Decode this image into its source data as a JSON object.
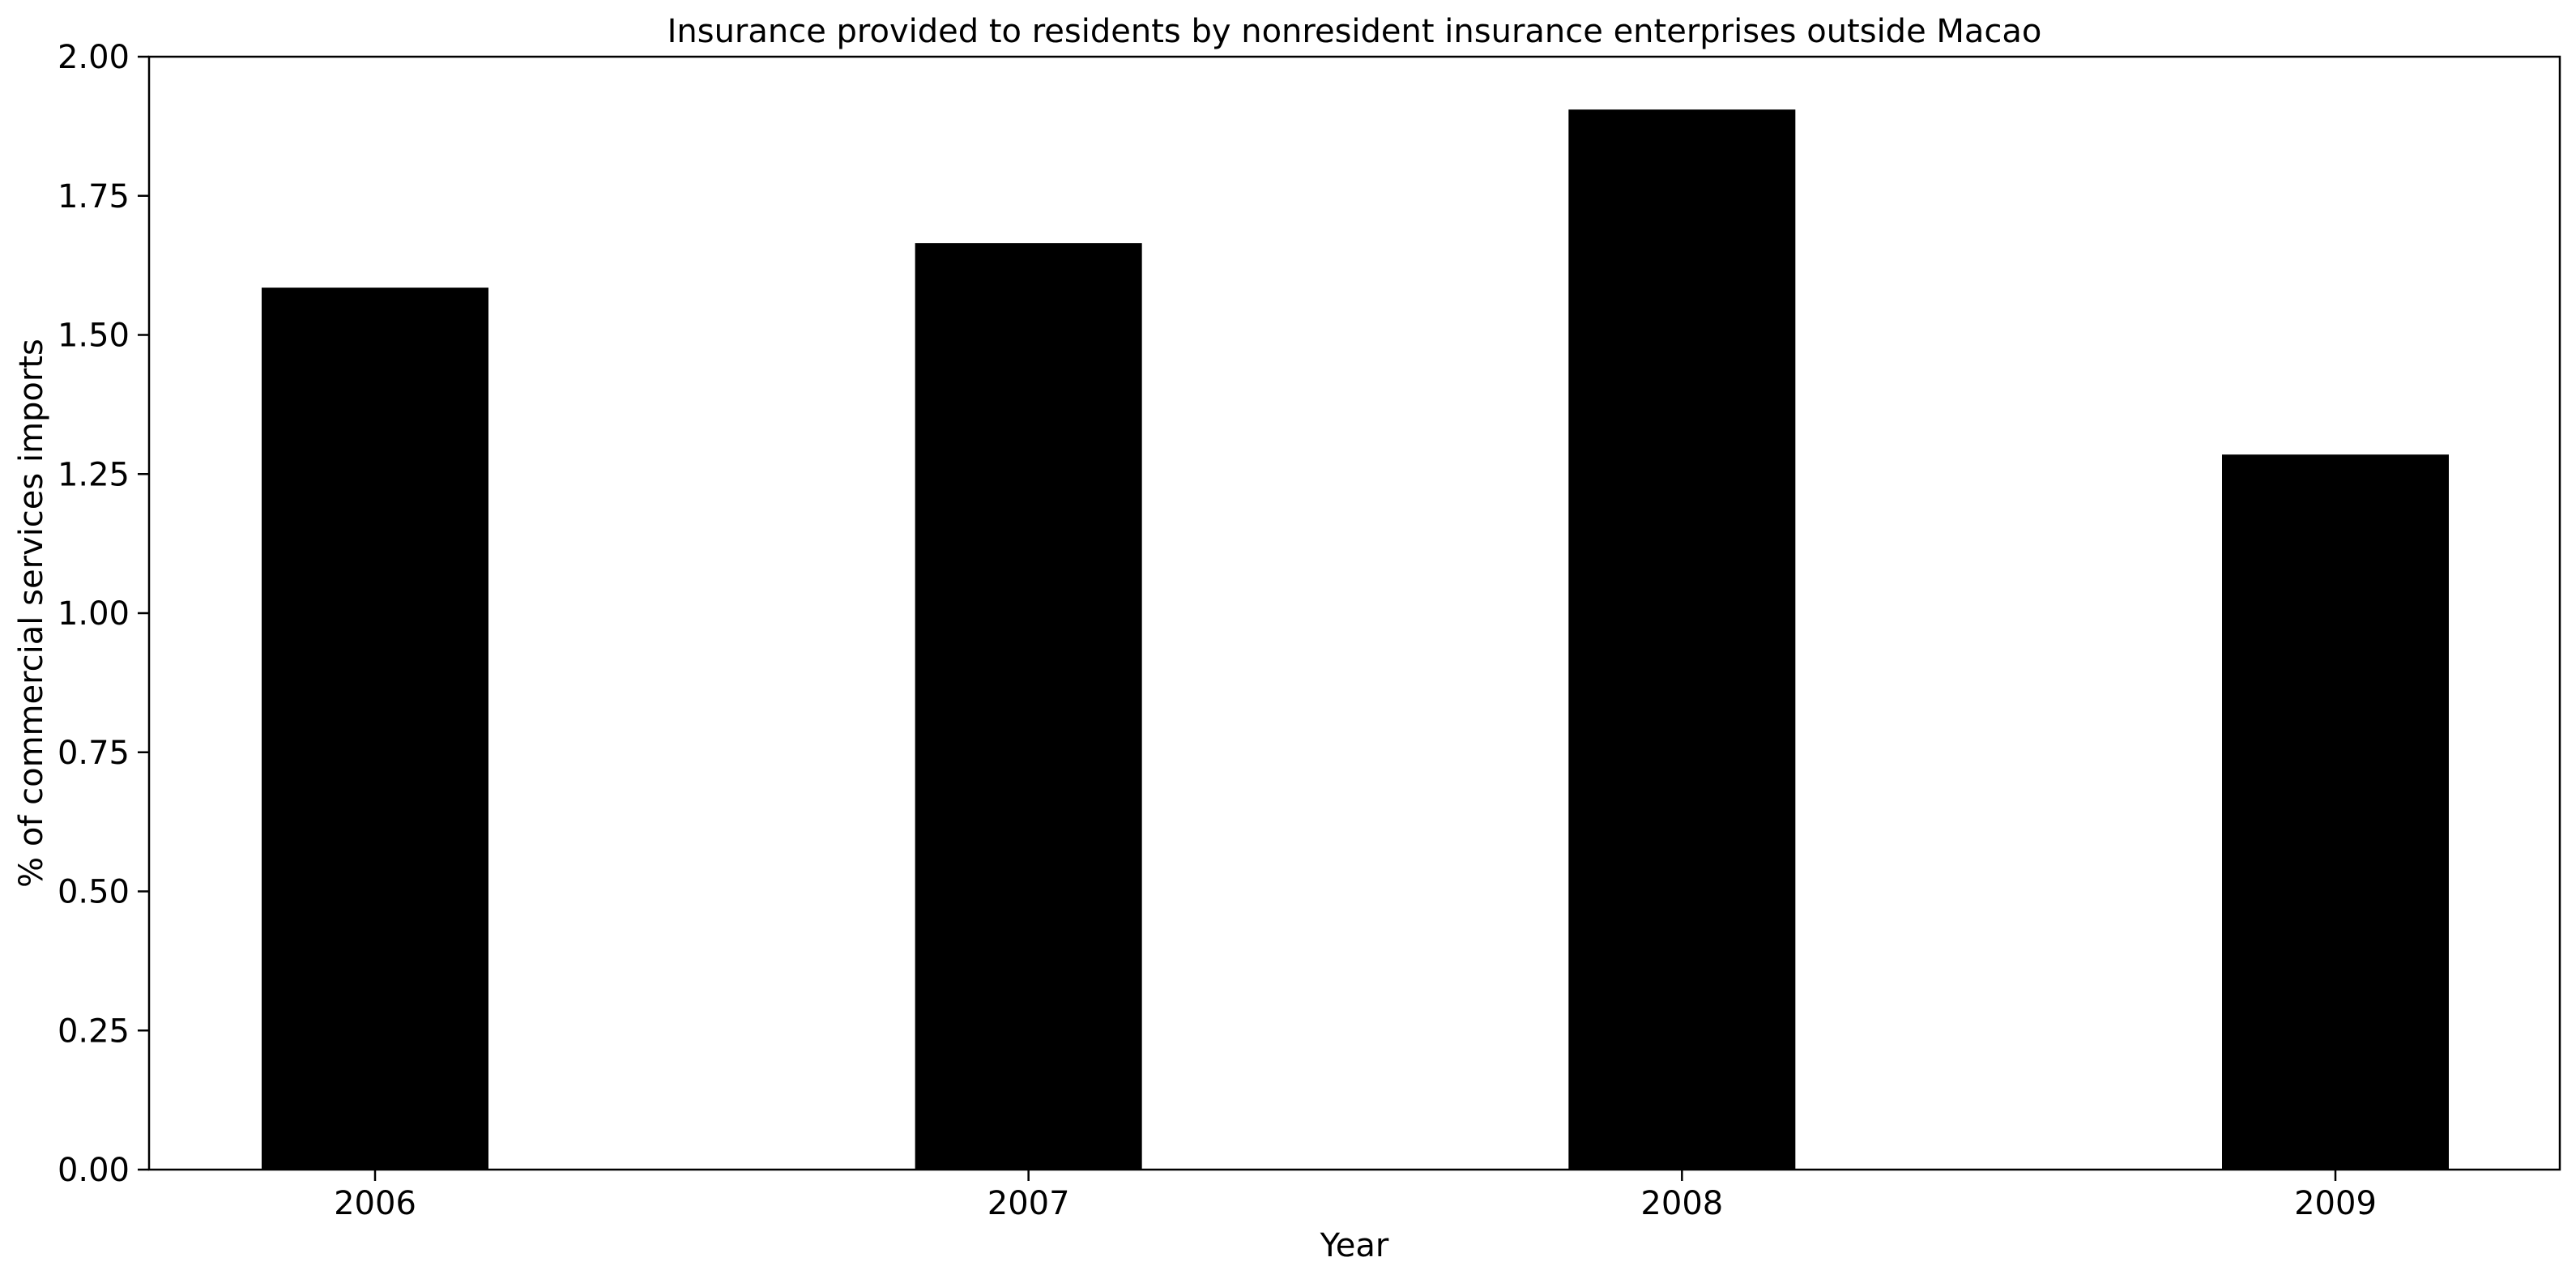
{
  "chart_data": {
    "type": "bar",
    "title": "Insurance provided to residents by nonresident insurance enterprises outside Macao",
    "xlabel": "Year",
    "ylabel": "% of commercial services imports",
    "categories": [
      "2006",
      "2007",
      "2008",
      "2009"
    ],
    "values": [
      1.585,
      1.665,
      1.905,
      1.285
    ],
    "ylim": [
      0,
      2.0
    ],
    "yticks": [
      0.0,
      0.25,
      0.5,
      0.75,
      1.0,
      1.25,
      1.5,
      1.75,
      2.0
    ],
    "ytick_labels": [
      "0.00",
      "0.25",
      "0.50",
      "0.75",
      "1.00",
      "1.25",
      "1.50",
      "1.75",
      "2.00"
    ],
    "grid": false,
    "legend": "none",
    "bar_color": "#000000"
  }
}
